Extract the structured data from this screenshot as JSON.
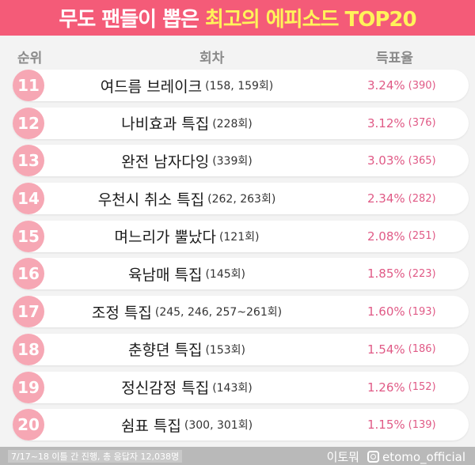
{
  "title": {
    "part1": "무도 팬들이 뽑은",
    "part2": "최고의 에피소드 TOP20"
  },
  "headers": {
    "rank": "순위",
    "episode": "회차",
    "vote": "득표율"
  },
  "colors": {
    "accent": "#f45b78",
    "title_highlight": "#fff35a",
    "rank_circle": "#f6a7b4",
    "vote_text": "#e05a86"
  },
  "rows": [
    {
      "rank": "11",
      "name": "여드름 브레이크",
      "num": "(158, 159회)",
      "pct": "3.24%",
      "cnt": "(390)"
    },
    {
      "rank": "12",
      "name": "나비효과 특집",
      "num": "(228회)",
      "pct": "3.12%",
      "cnt": "(376)"
    },
    {
      "rank": "13",
      "name": "완전 남자다잉",
      "num": "(339회)",
      "pct": "3.03%",
      "cnt": "(365)"
    },
    {
      "rank": "14",
      "name": "우천시 취소 특집",
      "num": "(262, 263회)",
      "pct": "2.34%",
      "cnt": "(282)"
    },
    {
      "rank": "15",
      "name": "며느리가 뿔났다",
      "num": "(121회)",
      "pct": "2.08%",
      "cnt": "(251)"
    },
    {
      "rank": "16",
      "name": "육남매 특집",
      "num": "(145회)",
      "pct": "1.85%",
      "cnt": "(223)"
    },
    {
      "rank": "17",
      "name": "조정 특집",
      "num": "(245, 246, 257~261회)",
      "pct": "1.60%",
      "cnt": "(193)"
    },
    {
      "rank": "18",
      "name": "춘향뎐 특집",
      "num": "(153회)",
      "pct": "1.54%",
      "cnt": "(186)"
    },
    {
      "rank": "19",
      "name": "정신감정 특집",
      "num": "(143회)",
      "pct": "1.26%",
      "cnt": "(152)"
    },
    {
      "rank": "20",
      "name": "쉼표 특집",
      "num": "(300, 301회)",
      "pct": "1.15%",
      "cnt": "(139)"
    }
  ],
  "footer": {
    "note": "7/17~18 이틀 간 진행, 총 응답자 12,038명",
    "brand": "이토뭐",
    "instagram": "etomo_official",
    "instagram_icon": "instagram-icon"
  }
}
